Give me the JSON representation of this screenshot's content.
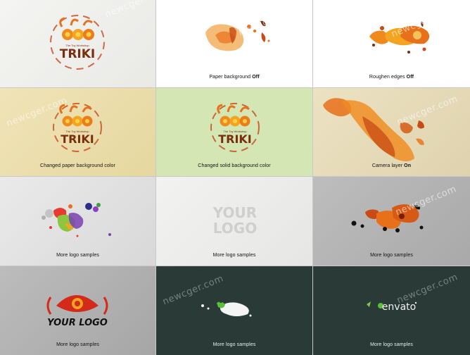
{
  "watermark": "newcger.com",
  "colors": {
    "orange": "#e8701a",
    "yellow": "#f4b020",
    "brown": "#7a2e10",
    "red": "#d42a1a",
    "dark_bg": "#2a3a36",
    "green_bg": "#d3e6b3",
    "cream_bg": "#efe2b4"
  },
  "tiles": [
    {
      "caption": "",
      "caption_bold": ""
    },
    {
      "caption": "Paper background ",
      "caption_bold": "Off"
    },
    {
      "caption": "Roughen edges ",
      "caption_bold": "Off"
    },
    {
      "caption": "Changed paper background color",
      "caption_bold": ""
    },
    {
      "caption": "Changed solid background color",
      "caption_bold": ""
    },
    {
      "caption": "Camera layer ",
      "caption_bold": "On"
    },
    {
      "caption": "More logo samples",
      "caption_bold": ""
    },
    {
      "caption": "More logo samples",
      "caption_bold": ""
    },
    {
      "caption": "More logo samples",
      "caption_bold": ""
    },
    {
      "caption": "More logo samples",
      "caption_bold": ""
    },
    {
      "caption": "More logo samples",
      "caption_bold": ""
    },
    {
      "caption": "More logo samples",
      "caption_bold": ""
    }
  ],
  "logos": {
    "triki_title": "TRIKI",
    "triki_subtitle": "The Toy Workshop",
    "your_logo_line1": "YOUR",
    "your_logo_line2": "LOGO",
    "your_logo_script": "YOUR LOGO",
    "envato": "envato"
  }
}
